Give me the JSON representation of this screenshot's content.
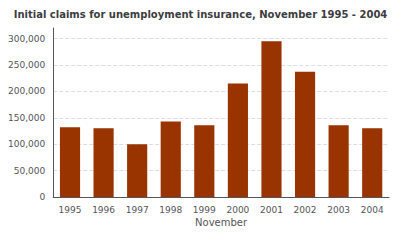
{
  "chart_data": {
    "type": "bar",
    "title": "Initial claims for unemployment insurance, November 1995 - 2004",
    "xlabel": "November",
    "categories": [
      "1995",
      "1996",
      "1997",
      "1998",
      "1999",
      "2000",
      "2001",
      "2002",
      "2003",
      "2004"
    ],
    "values": [
      132000,
      130000,
      100000,
      143000,
      136000,
      215000,
      295000,
      237000,
      136000,
      130000
    ],
    "color": "#993300",
    "ylim": [
      0,
      320000
    ],
    "yticks": [
      0,
      {
        "value": 50000,
        "label": "50,000"
      },
      {
        "value": 100000,
        "label": "100,000"
      },
      {
        "value": 150000,
        "label": "150,000"
      },
      {
        "value": 200000,
        "label": "200,000"
      },
      {
        "value": 250000,
        "label": "250,000"
      },
      {
        "value": 300000,
        "label": "300,000"
      }
    ],
    "grid": true
  }
}
